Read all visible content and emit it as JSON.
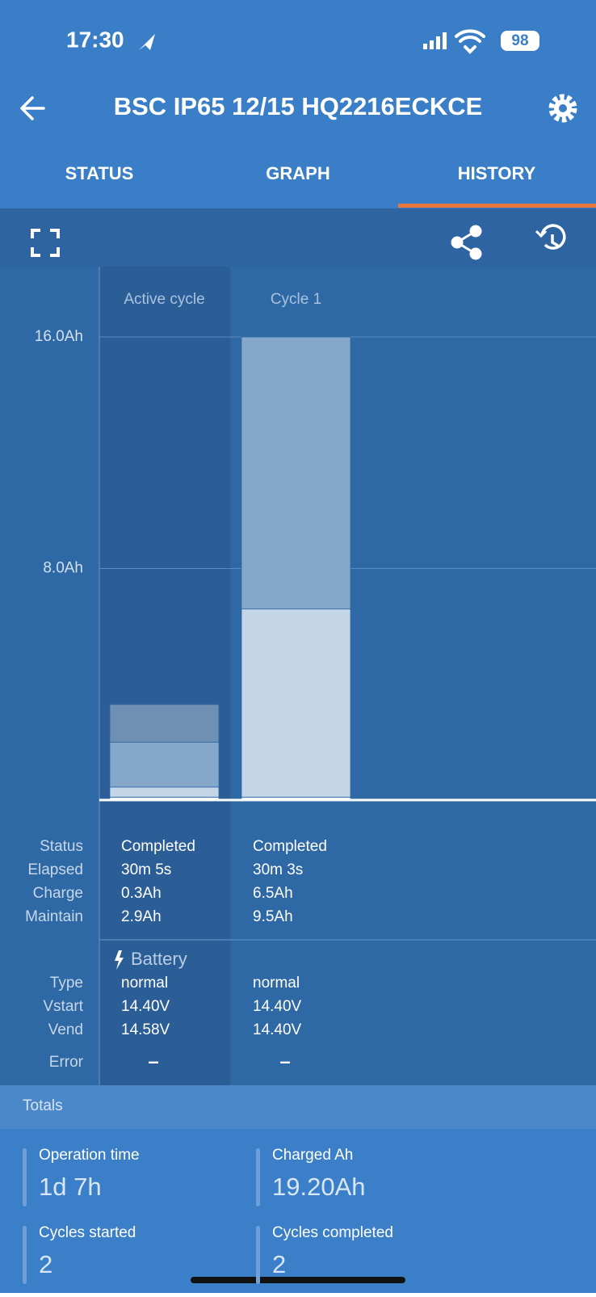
{
  "status_bar": {
    "time": "17:30",
    "battery": "98"
  },
  "header": {
    "title": "BSC IP65 12/15 HQ2216ECKCE"
  },
  "tabs": [
    "STATUS",
    "GRAPH",
    "HISTORY"
  ],
  "chart_data": {
    "type": "bar",
    "stacked": true,
    "categories": [
      "Active cycle",
      "Cycle 1"
    ],
    "series": [
      {
        "color": "#e9eff6",
        "values": [
          0.1,
          0.1
        ]
      },
      {
        "color": "#c3d5e6",
        "values": [
          0.35,
          6.5
        ]
      },
      {
        "color": "#84a7ca",
        "values": [
          1.55,
          9.4
        ]
      },
      {
        "color": "#6f90b3",
        "values": [
          1.3,
          0
        ]
      }
    ],
    "ylim": [
      0,
      16
    ],
    "yticks": [
      {
        "value": 8,
        "label": "8.0Ah"
      },
      {
        "value": 16,
        "label": "16.0Ah"
      }
    ],
    "grid": true
  },
  "table": {
    "row_labels": [
      "Status",
      "Elapsed",
      "Charge",
      "Maintain"
    ],
    "columns": [
      [
        "Completed",
        "30m 5s",
        "0.3Ah",
        "2.9Ah"
      ],
      [
        "Completed",
        "30m 3s",
        "6.5Ah",
        "9.5Ah"
      ]
    ]
  },
  "battery": {
    "title": "Battery",
    "row_labels": [
      "Type",
      "Vstart",
      "Vend"
    ],
    "columns": [
      [
        "normal",
        "14.40V",
        "14.58V"
      ],
      [
        "normal",
        "14.40V",
        "14.40V"
      ]
    ]
  },
  "error": {
    "label": "Error",
    "values": [
      "–",
      "–"
    ]
  },
  "totals": {
    "title": "Totals",
    "items": [
      {
        "label": "Operation time",
        "value": "1d 7h"
      },
      {
        "label": "Charged Ah",
        "value": "19.20Ah"
      },
      {
        "label": "Cycles started",
        "value": "2"
      },
      {
        "label": "Cycles completed",
        "value": "2"
      }
    ]
  }
}
